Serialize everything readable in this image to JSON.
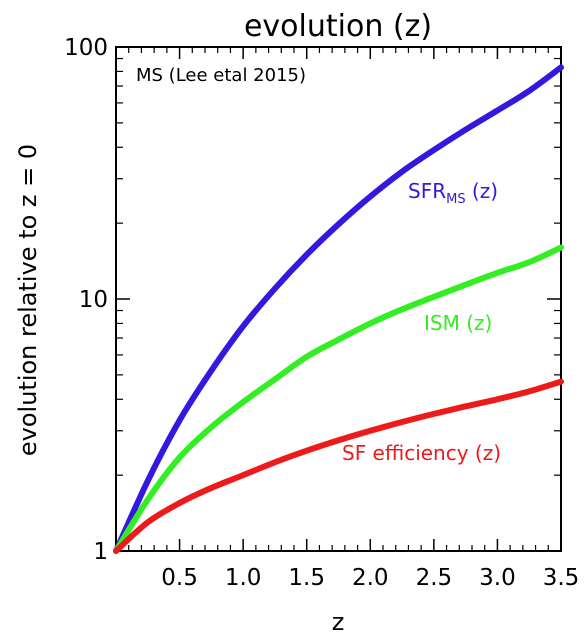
{
  "chart_data": {
    "type": "line",
    "title": "evolution (z)",
    "xlabel": "z",
    "ylabel": "evolution relative to z = 0",
    "annotation": "MS (Lee etal 2015)",
    "xlim": [
      0,
      3.5
    ],
    "ylim": [
      1,
      100
    ],
    "yscale": "log",
    "grid": false,
    "x_ticks": [
      0.5,
      1.0,
      1.5,
      2.0,
      2.5,
      3.0,
      3.5
    ],
    "x_tick_labels": [
      "0.5",
      "1.0",
      "1.5",
      "2.0",
      "2.5",
      "3.0",
      "3.5"
    ],
    "y_ticks": [
      1,
      10,
      100
    ],
    "y_tick_labels": [
      "1",
      "10",
      "100"
    ],
    "x": [
      0,
      0.25,
      0.5,
      0.75,
      1.0,
      1.25,
      1.5,
      1.75,
      2.0,
      2.25,
      2.5,
      2.75,
      3.0,
      3.25,
      3.5
    ],
    "series": [
      {
        "name": "SFR",
        "name_sub": "MS",
        "name_suffix": " (z)",
        "color": "#3318e0",
        "values": [
          1,
          1.9,
          3.3,
          5.2,
          7.8,
          11.0,
          15.0,
          19.8,
          25.5,
          32.0,
          39.0,
          47.0,
          56.0,
          67.0,
          83.0
        ]
      },
      {
        "name": "ISM (z)",
        "color": "#33ee22",
        "values": [
          1,
          1.6,
          2.35,
          3.1,
          3.9,
          4.8,
          5.9,
          6.9,
          8.0,
          9.1,
          10.2,
          11.4,
          12.7,
          14.0,
          16.0
        ]
      },
      {
        "name": "SF efficiency (z)",
        "color": "#ee1a1a",
        "values": [
          1,
          1.3,
          1.55,
          1.78,
          2.0,
          2.25,
          2.5,
          2.75,
          3.0,
          3.25,
          3.5,
          3.75,
          4.0,
          4.3,
          4.7
        ]
      }
    ]
  }
}
